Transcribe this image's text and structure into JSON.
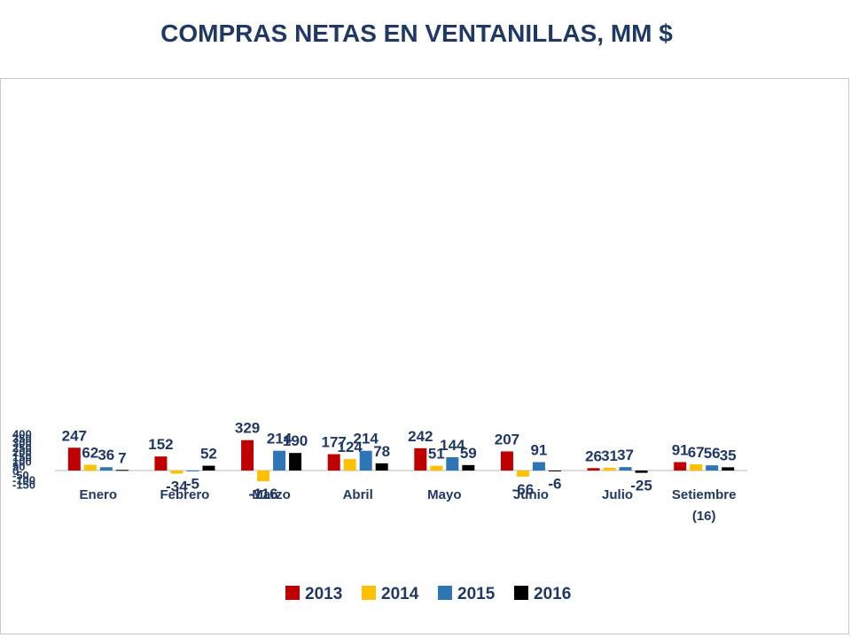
{
  "title": "COMPRAS NETAS EN VENTANILLAS, MM $",
  "chart_data": {
    "type": "bar",
    "categories": [
      "Enero",
      "Febrero",
      "Marzo",
      "Abril",
      "Mayo",
      "Junio",
      "Julio",
      "Setiembre\n(16)"
    ],
    "series": [
      {
        "name": "2013",
        "color": "#c00000",
        "values": [
          247,
          152,
          329,
          177,
          242,
          207,
          26,
          91
        ]
      },
      {
        "name": "2014",
        "color": "#ffc000",
        "values": [
          62,
          -34,
          -116,
          124,
          51,
          -66,
          31,
          67
        ]
      },
      {
        "name": "2015",
        "color": "#2e75b6",
        "values": [
          36,
          -5,
          214,
          214,
          144,
          91,
          37,
          56
        ]
      },
      {
        "name": "2016",
        "color": "#000000",
        "values": [
          7,
          52,
          190,
          78,
          59,
          -6,
          -25,
          35
        ]
      }
    ],
    "ylim": [
      -150,
      400
    ],
    "yticks": [
      400,
      350,
      300,
      250,
      200,
      150,
      100,
      50,
      0,
      -50,
      -100,
      -150
    ],
    "xlabel": "",
    "ylabel": "",
    "legend_position": "bottom",
    "data_labels": true,
    "grid": false
  }
}
